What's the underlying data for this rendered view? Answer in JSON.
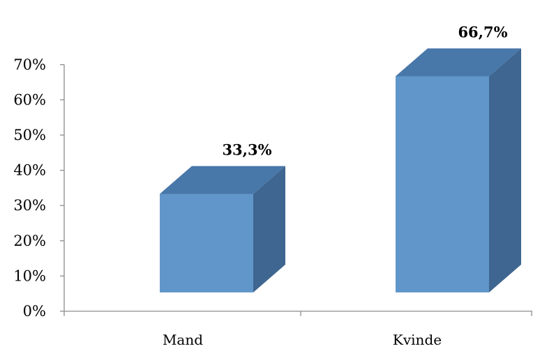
{
  "chart_data": {
    "type": "bar",
    "style": "3d-column",
    "categories": [
      "Mand",
      "Kvinde"
    ],
    "values": [
      33.3,
      66.7
    ],
    "data_labels": [
      "33,3%",
      "66,7%"
    ],
    "yticks": [
      "0%",
      "10%",
      "20%",
      "30%",
      "40%",
      "50%",
      "60%",
      "70%"
    ],
    "ylim": [
      0,
      70
    ],
    "title": "",
    "xlabel": "",
    "ylabel": "",
    "grid": false,
    "legend": "none",
    "colors": {
      "front": "#6196CA",
      "top": "#4877A9",
      "side": "#3E6690",
      "axis": "#8C8C8C"
    }
  }
}
